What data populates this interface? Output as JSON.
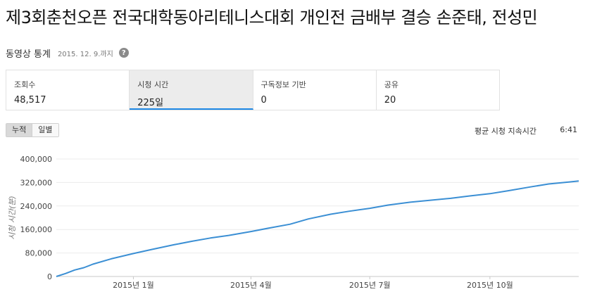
{
  "video": {
    "title": "제3회춘천오픈 전국대학동아리테니스대회 개인전 금배부 결승 손준태, 전성민"
  },
  "stats": {
    "heading": "동영상 통계",
    "as_of": "2015. 12. 9.까지",
    "help_icon": "?"
  },
  "metrics": [
    {
      "label": "조회수",
      "value": "48,517"
    },
    {
      "label": "시청 시간",
      "value": "225일"
    },
    {
      "label": "구독정보 기반",
      "value": "0"
    },
    {
      "label": "공유",
      "value": "20"
    }
  ],
  "toggles": {
    "cumulative": "누적",
    "daily": "일별"
  },
  "average": {
    "label": "평균 시청 지속시간",
    "value": "6:41"
  },
  "chart_data": {
    "type": "line",
    "ylabel": "시청 시간(분)",
    "xlabel": "",
    "ylim": [
      0,
      400000
    ],
    "y_ticks": [
      0,
      80000,
      160000,
      240000,
      320000,
      400000
    ],
    "y_tick_labels": [
      "0",
      "80,000",
      "160,000",
      "240,000",
      "320,000",
      "400,000"
    ],
    "x_tick_labels": [
      {
        "date": "2015-01-01",
        "label": "2015년 1월"
      },
      {
        "date": "2015-04-01",
        "label": "2015년 4월"
      },
      {
        "date": "2015-07-01",
        "label": "2015년 7월"
      },
      {
        "date": "2015-10-01",
        "label": "2015년 10월"
      }
    ],
    "xlim": [
      "2014-11-03",
      "2015-12-08"
    ],
    "grid": true,
    "line_color": "#3b8fd4",
    "series": [
      {
        "points": [
          [
            "2014-11-03",
            0
          ],
          [
            "2014-11-10",
            10000
          ],
          [
            "2014-11-17",
            22000
          ],
          [
            "2014-11-24",
            30000
          ],
          [
            "2014-12-01",
            42000
          ],
          [
            "2014-12-15",
            60000
          ],
          [
            "2015-01-01",
            78000
          ],
          [
            "2015-01-15",
            92000
          ],
          [
            "2015-02-01",
            108000
          ],
          [
            "2015-02-15",
            120000
          ],
          [
            "2015-03-01",
            131000
          ],
          [
            "2015-03-15",
            140000
          ],
          [
            "2015-04-01",
            153000
          ],
          [
            "2015-04-15",
            165000
          ],
          [
            "2015-05-01",
            178000
          ],
          [
            "2015-05-15",
            196000
          ],
          [
            "2015-06-01",
            212000
          ],
          [
            "2015-06-15",
            222000
          ],
          [
            "2015-07-01",
            232000
          ],
          [
            "2015-07-15",
            243000
          ],
          [
            "2015-08-01",
            253000
          ],
          [
            "2015-08-15",
            259000
          ],
          [
            "2015-09-01",
            266000
          ],
          [
            "2015-09-15",
            274000
          ],
          [
            "2015-10-01",
            282000
          ],
          [
            "2015-10-15",
            292000
          ],
          [
            "2015-11-01",
            305000
          ],
          [
            "2015-11-15",
            315000
          ],
          [
            "2015-12-01",
            322000
          ],
          [
            "2015-12-08",
            325000
          ]
        ]
      }
    ]
  }
}
